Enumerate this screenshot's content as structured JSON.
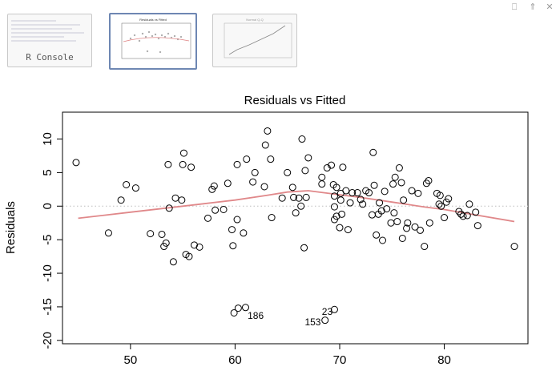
{
  "window_controls": {
    "minimize": "⎕",
    "maximize": "⇑",
    "close": "✕"
  },
  "tiles": [
    {
      "label": "R Console",
      "selected": false
    },
    {
      "label": "Residuals vs Fitted",
      "selected": true
    },
    {
      "label": "Normal Q-Q",
      "selected": false
    }
  ],
  "chart_data": {
    "type": "scatter",
    "title": "Residuals vs Fitted",
    "xlabel": "",
    "ylabel": "Residuals",
    "xlim": [
      43.5,
      88.0
    ],
    "ylim": [
      -20.5,
      14.0
    ],
    "xticks": [
      50,
      60,
      70,
      80
    ],
    "yticks": [
      -20,
      -15,
      -10,
      -5,
      0,
      5,
      10
    ],
    "point_color": "#000000",
    "smooth_color": "#e0888a",
    "zero_line_color": "#bdbdbd",
    "points": [
      [
        44.8,
        6.5
      ],
      [
        47.9,
        -4.0
      ],
      [
        49.1,
        0.9
      ],
      [
        49.6,
        3.2
      ],
      [
        50.5,
        2.7
      ],
      [
        51.9,
        -4.1
      ],
      [
        53.0,
        -4.2
      ],
      [
        53.2,
        -6.0
      ],
      [
        53.4,
        -5.5
      ],
      [
        53.6,
        6.2
      ],
      [
        53.7,
        -0.3
      ],
      [
        54.1,
        -8.3
      ],
      [
        54.3,
        1.2
      ],
      [
        54.9,
        0.9
      ],
      [
        55.0,
        6.2
      ],
      [
        55.1,
        7.9
      ],
      [
        55.3,
        -7.2
      ],
      [
        55.6,
        -7.5
      ],
      [
        55.8,
        5.8
      ],
      [
        56.1,
        -5.8
      ],
      [
        56.6,
        -6.1
      ],
      [
        57.4,
        -1.8
      ],
      [
        57.8,
        2.5
      ],
      [
        58.0,
        3.0
      ],
      [
        58.1,
        -0.6
      ],
      [
        58.9,
        -0.5
      ],
      [
        59.3,
        3.4
      ],
      [
        59.7,
        -3.5
      ],
      [
        59.8,
        -5.9
      ],
      [
        60.2,
        6.2
      ],
      [
        60.2,
        -2.0
      ],
      [
        60.8,
        -4.0
      ],
      [
        61.1,
        7.0
      ],
      [
        61.7,
        3.6
      ],
      [
        61.9,
        5.0
      ],
      [
        62.8,
        2.9
      ],
      [
        62.9,
        9.1
      ],
      [
        63.1,
        11.2
      ],
      [
        63.4,
        7.0
      ],
      [
        63.5,
        -1.7
      ],
      [
        64.5,
        1.2
      ],
      [
        65.0,
        5.0
      ],
      [
        65.5,
        2.8
      ],
      [
        65.6,
        1.3
      ],
      [
        65.8,
        -1.0
      ],
      [
        66.1,
        1.2
      ],
      [
        66.3,
        0.0
      ],
      [
        66.4,
        10.0
      ],
      [
        66.6,
        -6.2
      ],
      [
        66.7,
        5.3
      ],
      [
        66.8,
        1.3
      ],
      [
        67.0,
        7.2
      ],
      [
        68.3,
        3.3
      ],
      [
        68.3,
        4.3
      ],
      [
        68.8,
        5.7
      ],
      [
        69.2,
        6.1
      ],
      [
        69.4,
        3.2
      ],
      [
        69.5,
        1.5
      ],
      [
        69.5,
        -0.1
      ],
      [
        69.5,
        -2.0
      ],
      [
        69.7,
        2.8
      ],
      [
        69.7,
        -1.5
      ],
      [
        70.0,
        -3.2
      ],
      [
        70.1,
        0.9
      ],
      [
        70.1,
        1.9
      ],
      [
        70.2,
        -1.2
      ],
      [
        70.3,
        5.8
      ],
      [
        70.6,
        2.3
      ],
      [
        70.8,
        -3.5
      ],
      [
        71.0,
        0.5
      ],
      [
        71.2,
        2.0
      ],
      [
        71.7,
        2.0
      ],
      [
        72.0,
        1.0
      ],
      [
        72.2,
        0.3
      ],
      [
        72.5,
        2.3
      ],
      [
        72.8,
        2.0
      ],
      [
        73.1,
        -1.3
      ],
      [
        73.2,
        8.0
      ],
      [
        73.3,
        3.1
      ],
      [
        73.5,
        -4.3
      ],
      [
        73.7,
        -1.2
      ],
      [
        73.8,
        0.5
      ],
      [
        74.0,
        -0.7
      ],
      [
        74.1,
        -5.1
      ],
      [
        74.3,
        2.2
      ],
      [
        74.5,
        -0.4
      ],
      [
        74.9,
        -2.5
      ],
      [
        75.1,
        3.3
      ],
      [
        75.2,
        -1.0
      ],
      [
        75.3,
        4.3
      ],
      [
        75.5,
        -2.3
      ],
      [
        75.7,
        5.7
      ],
      [
        75.9,
        3.5
      ],
      [
        76.0,
        -4.8
      ],
      [
        76.1,
        0.9
      ],
      [
        76.4,
        -3.3
      ],
      [
        76.5,
        -2.5
      ],
      [
        76.9,
        2.3
      ],
      [
        77.2,
        -3.1
      ],
      [
        77.5,
        1.9
      ],
      [
        77.7,
        -3.6
      ],
      [
        78.1,
        -6.0
      ],
      [
        78.3,
        3.4
      ],
      [
        78.5,
        3.8
      ],
      [
        78.6,
        -2.5
      ],
      [
        79.3,
        1.9
      ],
      [
        79.5,
        0.3
      ],
      [
        79.6,
        1.6
      ],
      [
        79.7,
        0.0
      ],
      [
        80.0,
        -1.7
      ],
      [
        80.2,
        0.6
      ],
      [
        80.4,
        1.1
      ],
      [
        81.4,
        -0.8
      ],
      [
        81.6,
        -1.2
      ],
      [
        81.8,
        -1.5
      ],
      [
        82.2,
        -1.4
      ],
      [
        82.4,
        0.3
      ],
      [
        83.0,
        -0.9
      ],
      [
        83.2,
        -2.9
      ],
      [
        86.7,
        -6.0
      ],
      [
        59.9,
        -15.9
      ],
      [
        60.3,
        -15.2
      ],
      [
        61.0,
        -15.1
      ],
      [
        68.6,
        -17.0
      ],
      [
        69.5,
        -15.4
      ]
    ],
    "smooth": [
      [
        45.0,
        -1.8
      ],
      [
        50.0,
        -0.9
      ],
      [
        55.0,
        0.0
      ],
      [
        60.0,
        0.9
      ],
      [
        63.0,
        1.6
      ],
      [
        65.0,
        2.1
      ],
      [
        67.0,
        2.3
      ],
      [
        69.0,
        1.9
      ],
      [
        72.0,
        1.3
      ],
      [
        75.0,
        0.6
      ],
      [
        78.0,
        -0.1
      ],
      [
        80.0,
        -0.5
      ],
      [
        83.0,
        -1.3
      ],
      [
        86.7,
        -2.3
      ]
    ],
    "labels": [
      {
        "text": "186",
        "x": 61.2,
        "y": -16.3,
        "anchor": "start"
      },
      {
        "text": "23",
        "x": 68.3,
        "y": -15.7,
        "anchor": "start"
      },
      {
        "text": "153",
        "x": 68.2,
        "y": -17.3,
        "anchor": "end"
      }
    ]
  }
}
